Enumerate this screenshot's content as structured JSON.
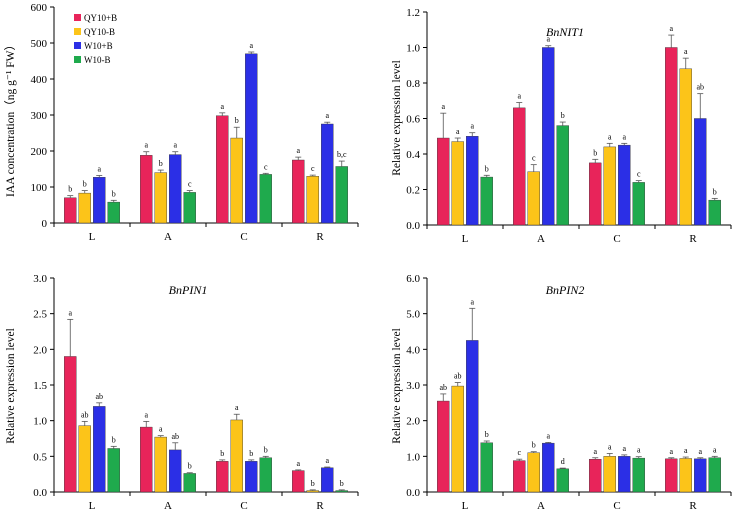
{
  "colors": {
    "QY10+B": "#e8245a",
    "QY10-B": "#fcc419",
    "W10+B": "#2b2fe6",
    "W10-B": "#1faa4d",
    "axis": "#000000",
    "error": "#555555"
  },
  "legend": [
    "QY10+B",
    "QY10-B",
    "W10+B",
    "W10-B"
  ],
  "chart_data": [
    {
      "id": "iaa",
      "type": "bar",
      "title": "",
      "ylabel": "IAA concentration（ng g⁻¹ FW）",
      "categories": [
        "L",
        "A",
        "C",
        "R"
      ],
      "ylim": [
        0,
        600
      ],
      "yticks": [
        "0",
        "100",
        "200",
        "300",
        "400",
        "500",
        "600"
      ],
      "series": [
        {
          "name": "QY10+B",
          "values": [
            70,
            188,
            298,
            175
          ],
          "errors": [
            6,
            10,
            8,
            8
          ],
          "labels": [
            "b",
            "a",
            "a",
            "a"
          ]
        },
        {
          "name": "QY10-B",
          "values": [
            83,
            140,
            236,
            130
          ],
          "errors": [
            7,
            7,
            30,
            3
          ],
          "labels": [
            "b",
            "b",
            "b",
            "c"
          ]
        },
        {
          "name": "W10+B",
          "values": [
            127,
            190,
            470,
            275
          ],
          "errors": [
            5,
            8,
            5,
            5
          ],
          "labels": [
            "a",
            "a",
            "a",
            "a"
          ]
        },
        {
          "name": "W10-B",
          "values": [
            58,
            85,
            135,
            157
          ],
          "errors": [
            5,
            5,
            3,
            15
          ],
          "labels": [
            "b",
            "c",
            "c",
            "b,c"
          ]
        }
      ]
    },
    {
      "id": "nit1",
      "type": "bar",
      "title": "BnNIT1",
      "ylabel": "Relative expression level",
      "categories": [
        "L",
        "A",
        "C",
        "R"
      ],
      "ylim": [
        0,
        1.2
      ],
      "yticks": [
        "0.0",
        "0.2",
        "0.4",
        "0.6",
        "0.8",
        "1.0",
        "1.2"
      ],
      "series": [
        {
          "name": "QY10+B",
          "values": [
            0.49,
            0.66,
            0.35,
            1.0
          ],
          "errors": [
            0.14,
            0.03,
            0.02,
            0.07
          ],
          "labels": [
            "a",
            "a",
            "b",
            "a"
          ]
        },
        {
          "name": "QY10-B",
          "values": [
            0.47,
            0.3,
            0.44,
            0.88
          ],
          "errors": [
            0.02,
            0.04,
            0.02,
            0.06
          ],
          "labels": [
            "a",
            "c",
            "a",
            "a"
          ]
        },
        {
          "name": "W10+B",
          "values": [
            0.5,
            1.0,
            0.45,
            0.6
          ],
          "errors": [
            0.02,
            0.01,
            0.01,
            0.14
          ],
          "labels": [
            "a",
            "a",
            "a",
            "ab"
          ]
        },
        {
          "name": "W10-B",
          "values": [
            0.27,
            0.56,
            0.24,
            0.14
          ],
          "errors": [
            0.01,
            0.02,
            0.01,
            0.01
          ],
          "labels": [
            "b",
            "b",
            "c",
            "b"
          ]
        }
      ]
    },
    {
      "id": "pin1",
      "type": "bar",
      "title": "BnPIN1",
      "ylabel": "Relative expression level",
      "categories": [
        "L",
        "A",
        "C",
        "R"
      ],
      "ylim": [
        0,
        3.0
      ],
      "yticks": [
        "0.0",
        "0.5",
        "1.0",
        "1.5",
        "2.0",
        "2.5",
        "3.0"
      ],
      "series": [
        {
          "name": "QY10+B",
          "values": [
            1.9,
            0.91,
            0.43,
            0.3
          ],
          "errors": [
            0.52,
            0.08,
            0.02,
            0.01
          ],
          "labels": [
            "a",
            "a",
            "b",
            "a"
          ]
        },
        {
          "name": "QY10-B",
          "values": [
            0.93,
            0.77,
            1.01,
            0.02
          ],
          "errors": [
            0.06,
            0.02,
            0.08,
            0.01
          ],
          "labels": [
            "ab",
            "a",
            "a",
            "b"
          ]
        },
        {
          "name": "W10+B",
          "values": [
            1.2,
            0.59,
            0.43,
            0.34
          ],
          "errors": [
            0.05,
            0.1,
            0.02,
            0.01
          ],
          "labels": [
            "ab",
            "ab",
            "b",
            "a"
          ]
        },
        {
          "name": "W10-B",
          "values": [
            0.61,
            0.26,
            0.48,
            0.02
          ],
          "errors": [
            0.03,
            0.01,
            0.02,
            0.01
          ],
          "labels": [
            "b",
            "b",
            "b",
            "b"
          ]
        }
      ]
    },
    {
      "id": "pin2",
      "type": "bar",
      "title": "BnPIN2",
      "ylabel": "Relative expression level",
      "categories": [
        "L",
        "A",
        "C",
        "R"
      ],
      "ylim": [
        0,
        6.0
      ],
      "yticks": [
        "0.0",
        "1.0",
        "2.0",
        "3.0",
        "4.0",
        "5.0",
        "6.0"
      ],
      "series": [
        {
          "name": "QY10+B",
          "values": [
            2.55,
            0.88,
            0.92,
            0.93
          ],
          "errors": [
            0.2,
            0.04,
            0.04,
            0.03
          ],
          "labels": [
            "ab",
            "c",
            "a",
            "a"
          ]
        },
        {
          "name": "QY10-B",
          "values": [
            2.97,
            1.1,
            1.0,
            0.94
          ],
          "errors": [
            0.1,
            0.03,
            0.08,
            0.04
          ],
          "labels": [
            "ab",
            "b",
            "a",
            "a"
          ]
        },
        {
          "name": "W10+B",
          "values": [
            4.25,
            1.37,
            1.0,
            0.93
          ],
          "errors": [
            0.9,
            0.02,
            0.04,
            0.03
          ],
          "labels": [
            "a",
            "a",
            "a",
            "a"
          ]
        },
        {
          "name": "W10-B",
          "values": [
            1.38,
            0.65,
            0.95,
            0.96
          ],
          "errors": [
            0.05,
            0.02,
            0.04,
            0.04
          ],
          "labels": [
            "b",
            "d",
            "a",
            "a"
          ]
        }
      ]
    }
  ]
}
